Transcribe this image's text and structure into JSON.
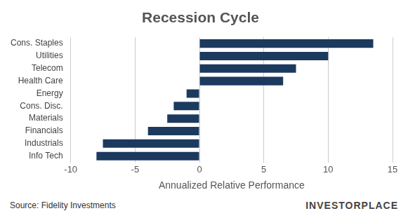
{
  "chart_data": {
    "type": "bar",
    "title": "Recession Cycle",
    "orientation": "horizontal",
    "categories": [
      "Cons. Staples",
      "Utilities",
      "Telecom",
      "Health Care",
      "Energy",
      "Cons. Disc.",
      "Materials",
      "Financials",
      "Industrials",
      "Info Tech"
    ],
    "values": [
      13.5,
      10,
      7.5,
      6.5,
      -1,
      -2,
      -2.5,
      -4,
      -7.5,
      -8
    ],
    "color": "#1c3a5e",
    "x_label": "Annualized Relative Performance",
    "xlim": [
      -10,
      15
    ],
    "xticks": [
      -10,
      -5,
      0,
      5,
      10,
      15
    ],
    "grid": true,
    "source": "Source: Fidelity Investments",
    "credit": "INVESTORPLACE"
  }
}
